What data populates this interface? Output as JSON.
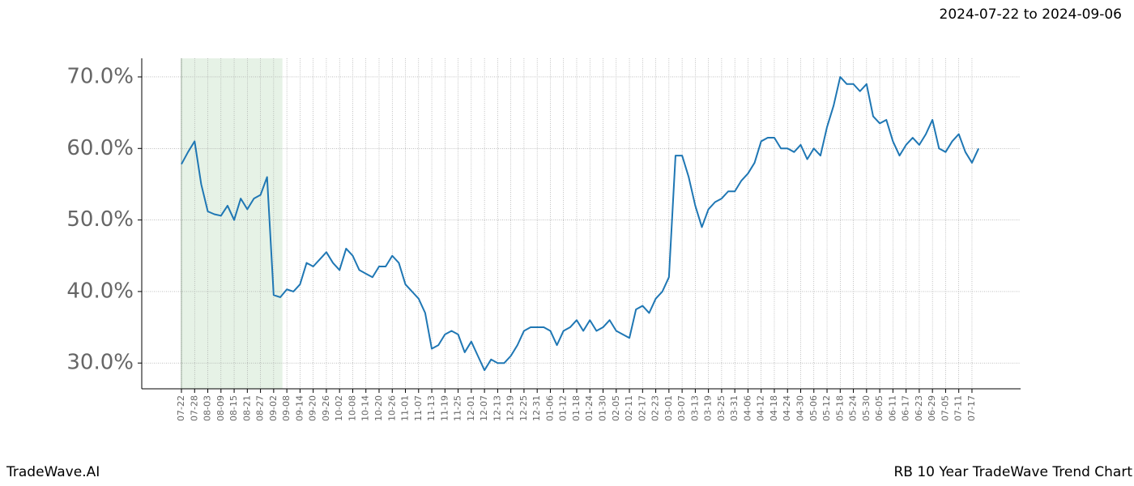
{
  "chart_data": {
    "type": "line",
    "subtitle": "2024-07-22 to 2024-09-06",
    "footer_left": "TradeWave.AI",
    "footer_right": "RB 10 Year TradeWave Trend Chart",
    "categories": [
      "07-22",
      null,
      "07-28",
      null,
      "08-03",
      null,
      "08-09",
      null,
      "08-15",
      null,
      "08-21",
      null,
      "08-27",
      null,
      "09-02",
      null,
      "09-08",
      null,
      "09-14",
      null,
      "09-20",
      null,
      "09-26",
      null,
      "10-02",
      null,
      "10-08",
      null,
      "10-14",
      null,
      "10-20",
      null,
      "10-26",
      null,
      "11-01",
      null,
      "11-07",
      null,
      "11-13",
      null,
      "11-19",
      null,
      "11-25",
      null,
      "12-01",
      null,
      "12-07",
      null,
      "12-13",
      null,
      "12-19",
      null,
      "12-25",
      null,
      "12-31",
      null,
      "01-06",
      null,
      "01-12",
      null,
      "01-18",
      null,
      "01-24",
      null,
      "01-30",
      null,
      "02-05",
      null,
      "02-11",
      null,
      "02-17",
      null,
      "02-23",
      null,
      "03-01",
      null,
      "03-07",
      null,
      "03-13",
      null,
      "03-19",
      null,
      "03-25",
      null,
      "03-31",
      null,
      "04-06",
      null,
      "04-12",
      null,
      "04-18",
      null,
      "04-24",
      null,
      "04-30",
      null,
      "05-06",
      null,
      "05-12",
      null,
      "05-18",
      null,
      "05-24",
      null,
      "05-30",
      null,
      "06-05",
      null,
      "06-11",
      null,
      "06-17",
      null,
      "06-23",
      null,
      "06-29",
      null,
      "07-05",
      null,
      "07-11",
      null,
      "07-17",
      null
    ],
    "values": [
      57.8,
      59.5,
      61,
      55,
      51.2,
      50.8,
      50.6,
      52,
      50,
      53,
      51.5,
      53,
      53.5,
      56,
      39.5,
      39.2,
      40.3,
      40,
      41,
      44,
      43.5,
      44.5,
      45.5,
      44,
      43,
      46,
      45,
      43,
      42.5,
      42,
      43.5,
      43.5,
      45,
      44,
      41,
      40,
      39,
      37,
      32,
      32.5,
      34,
      34.5,
      34,
      31.5,
      33,
      31,
      29,
      30.5,
      30,
      30,
      31,
      32.5,
      34.5,
      35,
      35,
      35,
      34.5,
      32.5,
      34.5,
      35,
      36,
      34.5,
      36,
      34.5,
      35,
      36,
      34.5,
      34,
      33.5,
      37.5,
      38,
      37,
      39,
      40,
      42,
      59,
      59,
      56,
      52,
      49,
      51.5,
      52.5,
      53,
      54,
      54,
      55.5,
      56.5,
      58,
      61,
      61.5,
      61.5,
      60,
      60,
      59.5,
      60.5,
      58.5,
      60,
      59,
      63,
      66,
      70,
      69,
      69,
      68,
      69,
      64.5,
      63.5,
      64,
      61,
      59,
      60.5,
      61.5,
      60.5,
      62,
      64,
      60,
      59.5,
      61,
      62,
      59.5,
      58,
      60
    ],
    "color": "#1f77b4",
    "highlight_color": "#e6f2e6",
    "ylim": [
      26.4,
      72.6
    ],
    "yticks": [
      {
        "value": 30,
        "label": "30.0%"
      },
      {
        "value": 40,
        "label": "40.0%"
      },
      {
        "value": 50,
        "label": "50.0%"
      },
      {
        "value": 60,
        "label": "60.0%"
      },
      {
        "value": 70,
        "label": "70.0%"
      }
    ],
    "grid": true
  }
}
